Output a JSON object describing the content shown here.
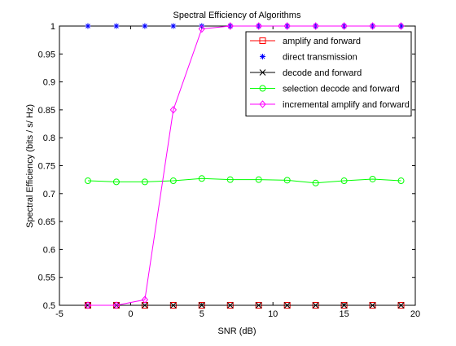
{
  "chart_data": {
    "type": "line",
    "title": "Spectral Efficiency of Algorithms",
    "xlabel": "SNR (dB)",
    "ylabel": "Spectral Efficiency (bits / s/ Hz)",
    "xlim": [
      -5,
      20
    ],
    "ylim": [
      0.5,
      1
    ],
    "xticks": [
      -5,
      0,
      5,
      10,
      15,
      20
    ],
    "yticks": [
      0.5,
      0.55,
      0.6,
      0.65,
      0.7,
      0.75,
      0.8,
      0.85,
      0.9,
      0.95,
      1
    ],
    "xtick_labels": [
      "-5",
      "0",
      "5",
      "10",
      "15",
      "20"
    ],
    "ytick_labels": [
      "0.5",
      "0.55",
      "0.6",
      "0.65",
      "0.7",
      "0.75",
      "0.8",
      "0.85",
      "0.9",
      "0.95",
      "1"
    ],
    "grid": false,
    "legend_position": "top-right",
    "x": [
      -3,
      -1,
      1,
      3,
      5,
      7,
      9,
      11,
      13,
      15,
      17,
      19
    ],
    "series": [
      {
        "name": "amplify and forward",
        "color": "#ff0000",
        "marker": "square",
        "line": "solid",
        "values": [
          0.5,
          0.5,
          0.5,
          0.5,
          0.5,
          0.5,
          0.5,
          0.5,
          0.5,
          0.5,
          0.5,
          0.5
        ]
      },
      {
        "name": "direct transmission",
        "color": "#0000ff",
        "marker": "star",
        "line": "none",
        "values": [
          1,
          1,
          1,
          1,
          1,
          1,
          1,
          1,
          1,
          1,
          1,
          1
        ]
      },
      {
        "name": "decode and forward",
        "color": "#000000",
        "marker": "x",
        "line": "solid",
        "values": [
          0.5,
          0.5,
          0.5,
          0.5,
          0.5,
          0.5,
          0.5,
          0.5,
          0.5,
          0.5,
          0.5,
          0.5
        ]
      },
      {
        "name": "selection decode and forward",
        "color": "#00ff00",
        "marker": "circle",
        "line": "solid",
        "values": [
          0.723,
          0.721,
          0.721,
          0.723,
          0.727,
          0.725,
          0.725,
          0.724,
          0.719,
          0.723,
          0.726,
          0.723
        ]
      },
      {
        "name": "incremental amplify and forward",
        "color": "#ff00ff",
        "marker": "diamond",
        "line": "solid",
        "values": [
          0.5,
          0.5,
          0.51,
          0.85,
          0.995,
          1,
          1,
          1,
          1,
          1,
          1,
          1
        ]
      }
    ]
  }
}
